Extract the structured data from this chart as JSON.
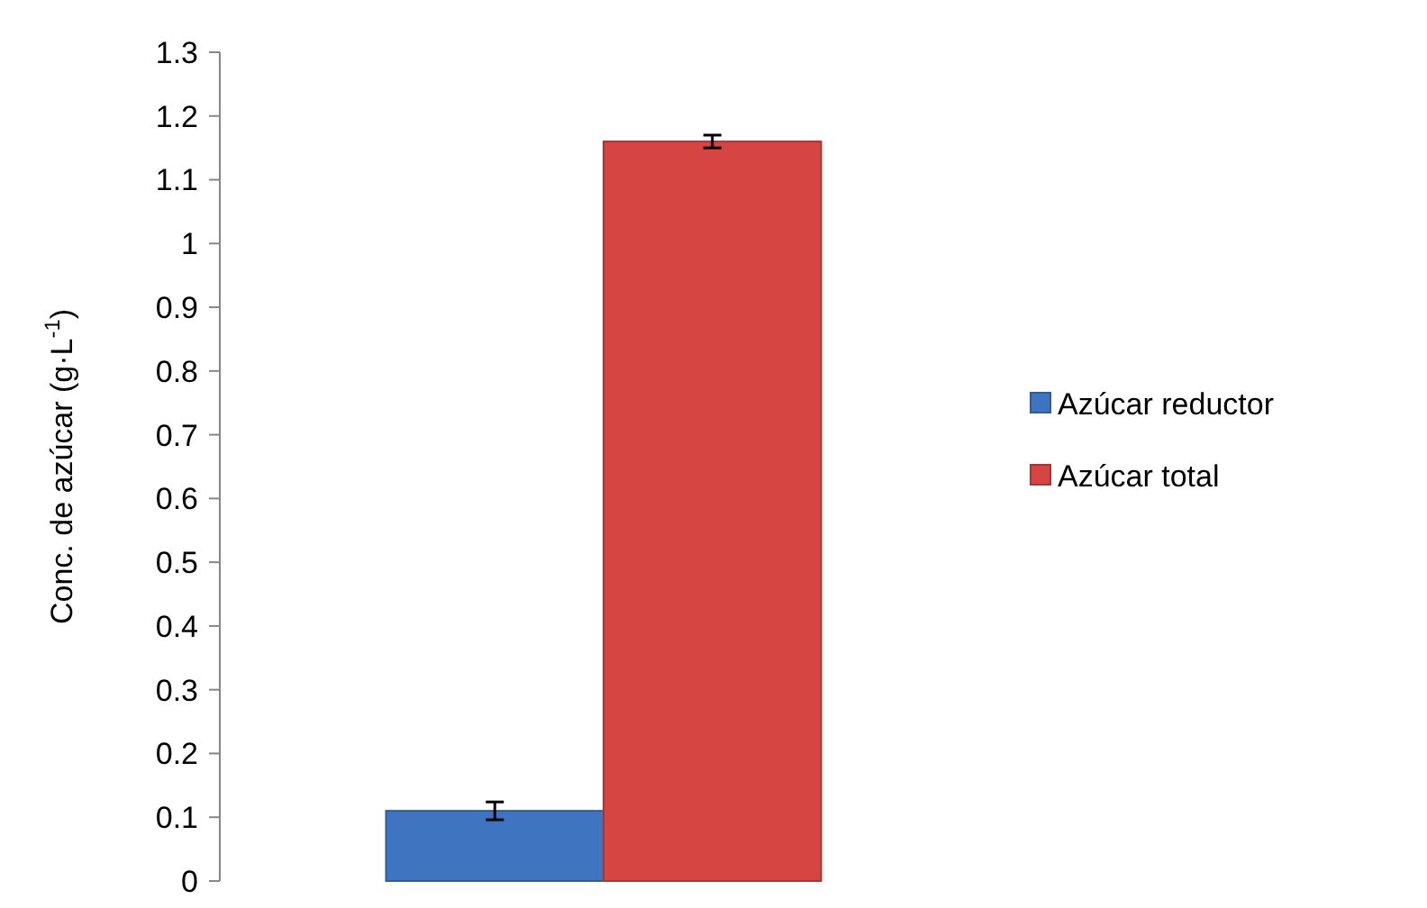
{
  "chart_data": {
    "type": "bar",
    "ylabel": "Conc. de azúcar (g·L$^{-1}$)",
    "categories": [
      null
    ],
    "series": [
      {
        "name": "Azúcar reductor",
        "color": "#3f75c0",
        "values": [
          0.11
        ],
        "errors": [
          0.014
        ]
      },
      {
        "name": "Azúcar total",
        "color": "#d64541",
        "values": [
          1.16
        ],
        "errors": [
          0.01
        ]
      }
    ],
    "ylim": [
      0,
      1.3
    ],
    "yticks": [
      0,
      0.1,
      0.2,
      0.3,
      0.4,
      0.5,
      0.6,
      0.7,
      0.8,
      0.9,
      1,
      1.1,
      1.2,
      1.3
    ],
    "grid": false,
    "legend": "right"
  }
}
